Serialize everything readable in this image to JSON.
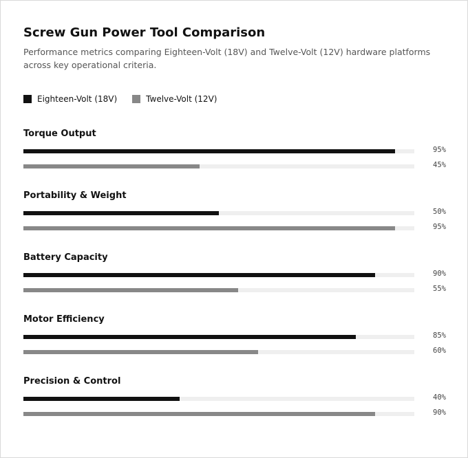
{
  "title": "Screw Gun Power Tool Comparison",
  "subtitle": "Performance metrics comparing Eighteen-Volt (18V) and Twelve-Volt (12V) hardware platforms across key operational criteria.",
  "colors": {
    "series_18v": "#111111",
    "series_12v": "#888888",
    "track": "#efefef"
  },
  "chart_data": {
    "type": "bar",
    "orientation": "horizontal",
    "title": "Screw Gun Power Tool Comparison",
    "subtitle": "Performance metrics comparing Eighteen-Volt (18V) and Twelve-Volt (12V) hardware platforms across key operational criteria.",
    "categories": [
      "Torque Output",
      "Portability & Weight",
      "Battery Capacity",
      "Motor Efficiency",
      "Precision & Control"
    ],
    "series": [
      {
        "name": "Eighteen-Volt (18V)",
        "color": "#111111",
        "values": [
          95,
          50,
          90,
          85,
          40
        ],
        "labels": [
          "95%",
          "50%",
          "90%",
          "85%",
          "40%"
        ]
      },
      {
        "name": "Twelve-Volt (12V)",
        "color": "#888888",
        "values": [
          45,
          95,
          55,
          60,
          90
        ],
        "labels": [
          "45%",
          "95%",
          "55%",
          "60%",
          "90%"
        ]
      }
    ],
    "xlim": [
      0,
      100
    ],
    "unit": "%",
    "grid": false,
    "legend_position": "top-left"
  }
}
